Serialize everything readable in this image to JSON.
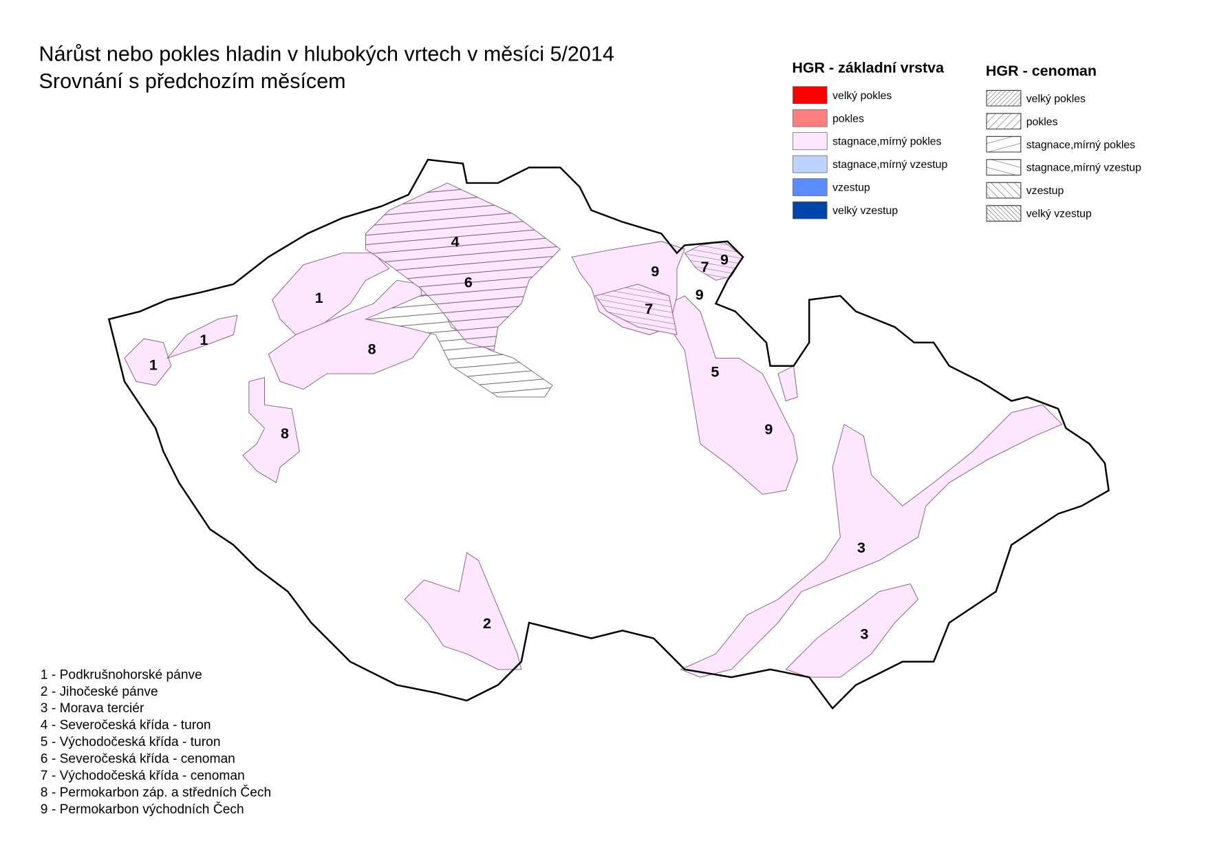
{
  "title": [
    "Nárůst nebo pokles hladin v hlubokých vrtech v měsíci 5/2014",
    "Srovnání s předchozím měsícem"
  ],
  "legend_base": {
    "title": "HGR - základní vrstva",
    "items": [
      {
        "label": "velký pokles",
        "color": "#ff0000"
      },
      {
        "label": "pokles",
        "color": "#ff7f7f"
      },
      {
        "label": "stagnace,mírný pokles",
        "color": "#ffe6ff"
      },
      {
        "label": "stagnace,mírný vzestup",
        "color": "#bed2ff"
      },
      {
        "label": "vzestup",
        "color": "#5a8cff"
      },
      {
        "label": "velký vzestup",
        "color": "#0046a8"
      }
    ]
  },
  "legend_cenoman": {
    "title": "HGR - cenoman",
    "items": [
      {
        "label": "velký pokles"
      },
      {
        "label": "pokles"
      },
      {
        "label": "stagnace,mírný pokles"
      },
      {
        "label": "stagnace,mírný vzestup"
      },
      {
        "label": "vzestup"
      },
      {
        "label": "velký vzestup"
      }
    ]
  },
  "map_labels": [
    "4",
    "6",
    "1",
    "8",
    "1",
    "1",
    "8",
    "9",
    "7",
    "9",
    "9",
    "7",
    "5",
    "9",
    "3",
    "3",
    "2"
  ],
  "key": [
    "1 - Podkrušnohorské pánve",
    "2 - Jihočeské pánve",
    "3 - Morava terciér",
    "4 - Severočeská křída - turon",
    "5 - Východočeská křída - turon",
    "6 - Severočeská křída - cenoman",
    "7 - Východočeská křída - cenoman",
    "8 - Permokarbon záp. a středních Čech",
    "9 - Permokarbon východních Čech"
  ]
}
